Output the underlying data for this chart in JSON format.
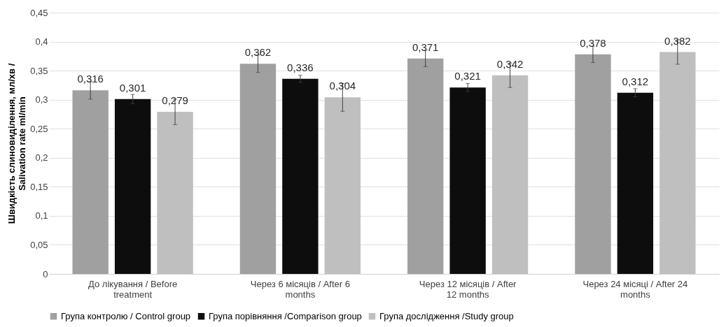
{
  "chart_data": {
    "type": "bar",
    "ylabel": "Швидкість слиновиділення, мл/хв / Salivation rate ml/min",
    "categories": [
      "До лікування / Before treatment",
      "Через 6 місяців / After 6 months",
      "Через 12 місяців / After 12 months",
      "Через 24 місяці / After 24 months"
    ],
    "series": [
      {
        "name": "Група контролю / Control group",
        "color": "#a0a0a0",
        "values": [
          0.316,
          0.362,
          0.371,
          0.378
        ],
        "errors": [
          0.015,
          0.015,
          0.014,
          0.014
        ],
        "value_labels": [
          "0,316",
          "0,362",
          "0,371",
          "0,378"
        ]
      },
      {
        "name": "Група порівняння /Comparison group",
        "color": "#0d0d0d",
        "values": [
          0.301,
          0.336,
          0.321,
          0.312
        ],
        "errors": [
          0.008,
          0.006,
          0.007,
          0.007
        ],
        "value_labels": [
          "0,301",
          "0,336",
          "0,321",
          "0,312"
        ]
      },
      {
        "name": "Група дослідження /Study group",
        "color": "#bfbfbf",
        "values": [
          0.279,
          0.304,
          0.342,
          0.382
        ],
        "errors": [
          0.022,
          0.024,
          0.021,
          0.021
        ],
        "value_labels": [
          "0,279",
          "0,304",
          "0,342",
          "0,382"
        ]
      }
    ],
    "ylim": [
      0,
      0.45
    ],
    "yticks": [
      {
        "value": 0,
        "label": "0"
      },
      {
        "value": 0.05,
        "label": "0,05"
      },
      {
        "value": 0.1,
        "label": "0,1"
      },
      {
        "value": 0.15,
        "label": "0,15"
      },
      {
        "value": 0.2,
        "label": "0,2"
      },
      {
        "value": 0.25,
        "label": "0,25"
      },
      {
        "value": 0.3,
        "label": "0,3"
      },
      {
        "value": 0.35,
        "label": "0,35"
      },
      {
        "value": 0.4,
        "label": "0,4"
      },
      {
        "value": 0.45,
        "label": "0,45"
      }
    ],
    "grid": "y",
    "legend": "bottom"
  }
}
